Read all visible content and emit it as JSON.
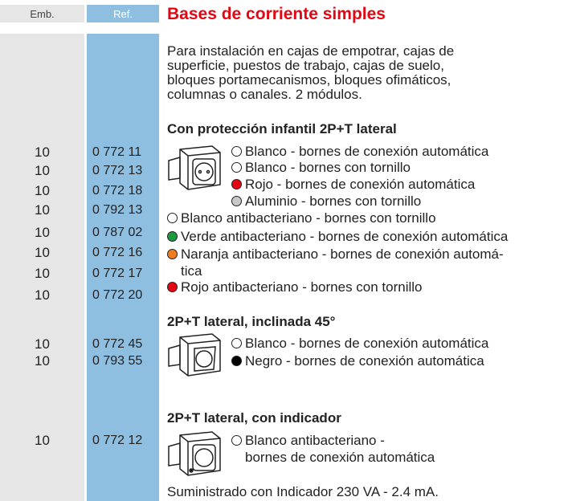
{
  "header": {
    "emb": "Emb.",
    "ref": "Ref.",
    "title": "Bases de corriente simples"
  },
  "description": [
    "Para instalación en cajas de empotrar, cajas de",
    "superficie, puestos de trabajo, cajas de suelo,",
    "bloques portamecanismos, bloques ofimáticos,",
    "columnas o canales. 2 módulos."
  ],
  "sections": [
    {
      "heading": "Con protección infantil 2P+T lateral",
      "rows": [
        {
          "emb": "10",
          "ref": "0 772 11"
        },
        {
          "emb": "10",
          "ref": "0 772 13"
        },
        {
          "emb": "10",
          "ref": "0 772 18"
        },
        {
          "emb": "10",
          "ref": "0 792 13"
        },
        {
          "emb": "10",
          "ref": "0 787 02"
        },
        {
          "emb": "10",
          "ref": "0 772 16"
        },
        {
          "emb": "10",
          "ref": "0 772 17"
        },
        {
          "emb": "10",
          "ref": "0 772 20"
        }
      ],
      "items": [
        {
          "color": "#ffffff",
          "lines": [
            "Blanco - bornes de conexión automática"
          ]
        },
        {
          "color": "#ffffff",
          "lines": [
            "Blanco - bornes con tornillo"
          ]
        },
        {
          "color": "#e30613",
          "lines": [
            "Rojo - bornes de conexión automática"
          ]
        },
        {
          "color": "#c8c8c8",
          "lines": [
            "Aluminio - bornes con tornillo"
          ]
        },
        {
          "color": "#ffffff",
          "lines": [
            "Blanco antibacteriano - bornes con tornillo"
          ]
        },
        {
          "color": "#1a9a3a",
          "lines": [
            "Verde antibacteriano - bornes de conexión automática"
          ]
        },
        {
          "color": "#f07c1c",
          "lines": [
            "Naranja antibacteriano - bornes de conexión automá-",
            "tica"
          ]
        },
        {
          "color": "#e30613",
          "lines": [
            "Rojo antibacteriano - bornes con tornillo"
          ]
        }
      ]
    },
    {
      "heading": "2P+T lateral, inclinada 45°",
      "rows": [
        {
          "emb": "10",
          "ref": "0 772 45"
        },
        {
          "emb": "10",
          "ref": "0 793 55"
        }
      ],
      "items": [
        {
          "color": "#ffffff",
          "lines": [
            "Blanco - bornes de conexión automática"
          ]
        },
        {
          "color": "#000000",
          "lines": [
            "Negro - bornes de conexión automática"
          ]
        }
      ]
    },
    {
      "heading": "2P+T lateral, con indicador",
      "rows": [
        {
          "emb": "10",
          "ref": "0 772 12"
        }
      ],
      "items": [
        {
          "color": "#ffffff",
          "lines": [
            "Blanco antibacteriano -",
            "bornes de conexión automática"
          ]
        }
      ]
    }
  ],
  "footnote": "Suministrado con Indicador 230 VA - 2.4 mA."
}
